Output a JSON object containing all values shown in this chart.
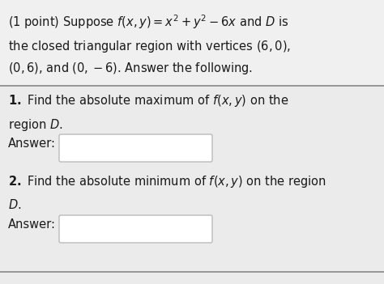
{
  "background_color": "#ebebeb",
  "top_bg": "#f5f5f5",
  "text_color": "#1a1a1a",
  "header_line1": "(1 point) Suppose $f(x, y) = x^2 + y^2 - 6x$ and $D$ is",
  "header_line2": "the closed triangular region with vertices $(6, 0)$,",
  "header_line3": "$(0, 6)$, and $(0, -6)$. Answer the following.",
  "q1_line1": "$\\mathbf{1.}$ Find the absolute maximum of $f(x, y)$ on the",
  "q1_line2": "region $D$.",
  "q1_answer_label": "Answer:",
  "q2_line1": "$\\mathbf{2.}$ Find the absolute minimum of $f(x, y)$ on the region",
  "q2_line2": "$D$.",
  "q2_answer_label": "Answer:",
  "box_color": "#ffffff",
  "box_border": "#bbbbbb",
  "separator_color": "#888888",
  "font_size": 10.5,
  "fig_width": 4.74,
  "fig_height": 3.51,
  "dpi": 100
}
